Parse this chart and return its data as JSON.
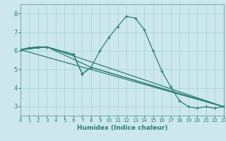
{
  "xlabel": "Humidex (Indice chaleur)",
  "xlim": [
    0,
    23
  ],
  "ylim": [
    2.5,
    8.5
  ],
  "yticks": [
    3,
    4,
    5,
    6,
    7,
    8
  ],
  "xticks": [
    0,
    1,
    2,
    3,
    4,
    5,
    6,
    7,
    8,
    9,
    10,
    11,
    12,
    13,
    14,
    15,
    16,
    17,
    18,
    19,
    20,
    21,
    22,
    23
  ],
  "bg_color": "#cce8ec",
  "grid_color": "#aad4d8",
  "line_color": "#2d7d78",
  "line1_x": [
    0,
    1,
    2,
    3,
    6,
    7,
    8,
    9,
    10,
    11,
    12,
    13,
    14,
    15,
    16,
    17,
    18,
    19,
    20,
    21,
    22,
    23
  ],
  "line1_y": [
    6.05,
    6.15,
    6.2,
    6.2,
    5.8,
    4.75,
    5.1,
    6.0,
    6.7,
    7.3,
    7.85,
    7.75,
    7.15,
    6.0,
    4.9,
    4.05,
    3.3,
    2.98,
    2.9,
    2.98,
    2.9,
    2.98
  ],
  "line2_x": [
    0,
    1,
    2,
    3,
    6,
    7,
    8,
    23
  ],
  "line2_y": [
    6.05,
    6.15,
    6.2,
    6.2,
    5.8,
    4.75,
    5.1,
    2.98
  ],
  "line3_x": [
    0,
    23
  ],
  "line3_y": [
    6.05,
    2.98
  ],
  "line4_x": [
    0,
    3,
    23
  ],
  "line4_y": [
    6.05,
    6.2,
    2.98
  ],
  "line5_x": [
    0,
    3,
    8,
    23
  ],
  "line5_y": [
    6.05,
    6.2,
    5.1,
    2.98
  ]
}
